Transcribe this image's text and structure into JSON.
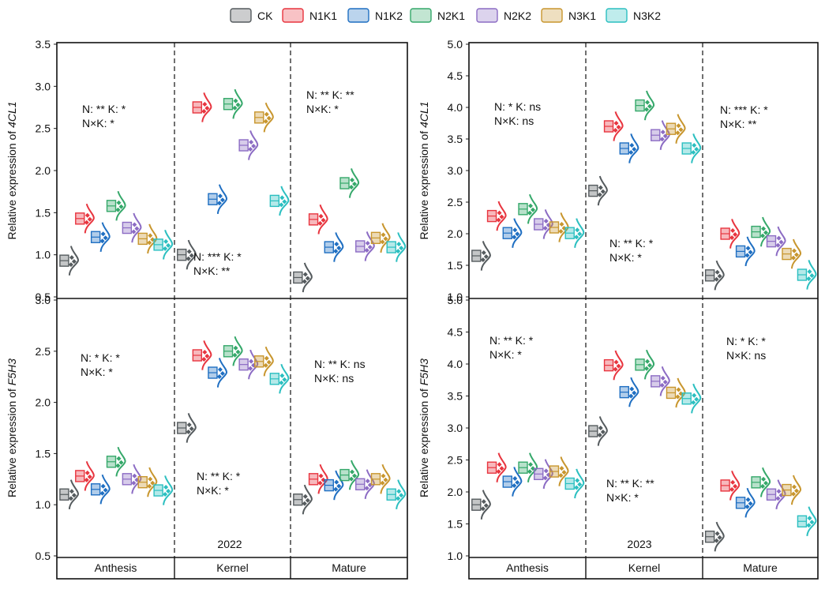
{
  "legend": [
    {
      "name": "CK",
      "color": "#555b5e"
    },
    {
      "name": "N1K1",
      "color": "#e8353f"
    },
    {
      "name": "N1K2",
      "color": "#1f6fc2"
    },
    {
      "name": "N2K1",
      "color": "#35a86a"
    },
    {
      "name": "N2K2",
      "color": "#8c6cc4"
    },
    {
      "name": "N3K1",
      "color": "#c8962e"
    },
    {
      "name": "N3K2",
      "color": "#2bbfc0"
    }
  ],
  "stages": [
    "Anthesis",
    "Kernel",
    "Mature"
  ],
  "years": [
    "2022",
    "2023"
  ],
  "chart_data": [
    {
      "type": "violin-box",
      "year": "2022",
      "gene": "4CL1",
      "ylabel_prefix": "Relative expression of ",
      "ylabel_gene": "4CL1",
      "ylim": [
        0.5,
        3.5
      ],
      "yticks": [
        "0.5",
        "1.0",
        "1.5",
        "2.0",
        "2.5",
        "3.0",
        "3.5"
      ],
      "series_by_stage": [
        [
          0.93,
          1.43,
          1.21,
          1.58,
          1.32,
          1.19,
          1.12
        ],
        [
          1.0,
          2.75,
          1.66,
          2.79,
          2.3,
          2.63,
          1.64
        ],
        [
          0.73,
          1.42,
          1.09,
          1.85,
          1.1,
          1.2,
          1.09
        ]
      ],
      "annotations": [
        {
          "line1": "N: ** K: *",
          "line2": "N×K: *"
        },
        {
          "line1": "N: *** K: *",
          "line2": "N×K: **"
        },
        {
          "line1": "N: ** K: **",
          "line2": "N×K: *"
        }
      ]
    },
    {
      "type": "violin-box",
      "year": "2022",
      "gene": "F5H3",
      "ylabel_prefix": "Relative expression of ",
      "ylabel_gene": "F5H3",
      "ylim": [
        0.5,
        3.0
      ],
      "yticks": [
        "0.5",
        "1.0",
        "1.5",
        "2.0",
        "2.5",
        "3.0"
      ],
      "series_by_stage": [
        [
          1.1,
          1.28,
          1.15,
          1.42,
          1.25,
          1.22,
          1.14
        ],
        [
          1.75,
          2.46,
          2.29,
          2.5,
          2.37,
          2.4,
          2.23
        ],
        [
          1.05,
          1.25,
          1.19,
          1.29,
          1.2,
          1.25,
          1.1
        ]
      ],
      "annotations": [
        {
          "line1": "N: * K: *",
          "line2": "N×K: *"
        },
        {
          "line1": "N: ** K: *",
          "line2": "N×K: *"
        },
        {
          "line1": "N: ** K: ns",
          "line2": "N×K: ns"
        }
      ]
    },
    {
      "type": "violin-box",
      "year": "2023",
      "gene": "4CL1",
      "ylabel_prefix": "Relative expression of ",
      "ylabel_gene": "4CL1",
      "ylim": [
        1.0,
        5.0
      ],
      "yticks": [
        "1.0",
        "1.5",
        "2.0",
        "2.5",
        "3.0",
        "3.5",
        "4.0",
        "4.5",
        "5.0"
      ],
      "series_by_stage": [
        [
          1.65,
          2.28,
          2.01,
          2.39,
          2.15,
          2.1,
          2.01
        ],
        [
          2.68,
          3.7,
          3.35,
          4.03,
          3.56,
          3.66,
          3.35
        ],
        [
          1.34,
          2.0,
          1.72,
          2.03,
          1.88,
          1.68,
          1.35
        ]
      ],
      "annotations": [
        {
          "line1": "N: * K: ns",
          "line2": "N×K: ns"
        },
        {
          "line1": "N: ** K: *",
          "line2": "N×K: *"
        },
        {
          "line1": "N: *** K: *",
          "line2": "N×K: **"
        }
      ]
    },
    {
      "type": "violin-box",
      "year": "2023",
      "gene": "F5H3",
      "ylabel_prefix": "Relative expression of ",
      "ylabel_gene": "F5H3",
      "ylim": [
        1.0,
        5.0
      ],
      "yticks": [
        "1.0",
        "1.5",
        "2.0",
        "2.5",
        "3.0",
        "3.5",
        "4.0",
        "4.5",
        "5.0"
      ],
      "series_by_stage": [
        [
          1.8,
          2.38,
          2.16,
          2.38,
          2.28,
          2.32,
          2.13
        ],
        [
          2.95,
          3.98,
          3.56,
          3.99,
          3.73,
          3.55,
          3.46
        ],
        [
          1.3,
          2.1,
          1.83,
          2.15,
          1.96,
          2.03,
          1.54
        ]
      ],
      "annotations": [
        {
          "line1": "N: ** K: *",
          "line2": "N×K: *"
        },
        {
          "line1": "N: ** K: **",
          "line2": "N×K: *"
        },
        {
          "line1": "N: * K: *",
          "line2": "N×K: ns"
        }
      ]
    }
  ]
}
